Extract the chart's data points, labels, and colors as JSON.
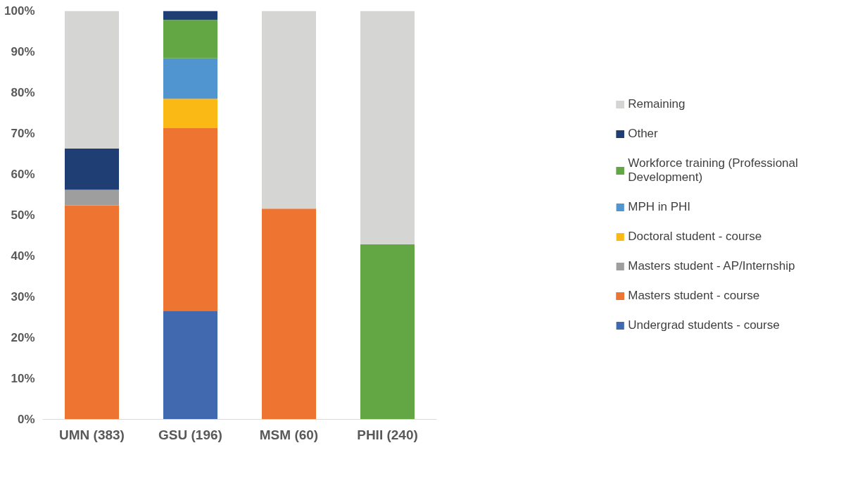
{
  "chart_data": {
    "type": "bar",
    "stacked": true,
    "categories": [
      "UMN (383)",
      "GSU (196)",
      "MSM (60)",
      "PHII (240)"
    ],
    "series": [
      {
        "name": "Undergrad students - course",
        "color": "#4169b0",
        "values": [
          null,
          26.6,
          null,
          null
        ]
      },
      {
        "name": "Masters student - course",
        "color": "#ed7431",
        "values": [
          52.4,
          44.7,
          51.6,
          null
        ]
      },
      {
        "name": "Masters student - AP/Internship",
        "color": "#9e9e9e",
        "values": [
          3.8,
          null,
          null,
          null
        ]
      },
      {
        "name": "Doctoral student - course",
        "color": "#fbb915",
        "values": [
          null,
          7.2,
          null,
          null
        ]
      },
      {
        "name": "MPH in PHI",
        "color": "#5195d0",
        "values": [
          null,
          9.9,
          null,
          null
        ]
      },
      {
        "name": "Workforce training (Professional Development)",
        "color": "#63a745",
        "values": [
          null,
          9.4,
          null,
          42.9
        ]
      },
      {
        "name": "Other",
        "color": "#1f3e73",
        "values": [
          10.1,
          2.2,
          null,
          null
        ]
      },
      {
        "name": "Remaining",
        "color": "#d5d5d3",
        "values": [
          33.7,
          null,
          48.4,
          57.1
        ]
      }
    ],
    "ylim": [
      0,
      100
    ],
    "yticks": [
      {
        "value": 0,
        "label": "0%"
      },
      {
        "value": 10,
        "label": "10%"
      },
      {
        "value": 20,
        "label": "20%"
      },
      {
        "value": 30,
        "label": "30%"
      },
      {
        "value": 40,
        "label": "40%"
      },
      {
        "value": 50,
        "label": "50%"
      },
      {
        "value": 60,
        "label": "60%"
      },
      {
        "value": 70,
        "label": "70%"
      },
      {
        "value": 80,
        "label": "80%"
      },
      {
        "value": 90,
        "label": "90%"
      },
      {
        "value": 100,
        "label": "100%"
      }
    ],
    "grid": false,
    "legend": "right"
  }
}
